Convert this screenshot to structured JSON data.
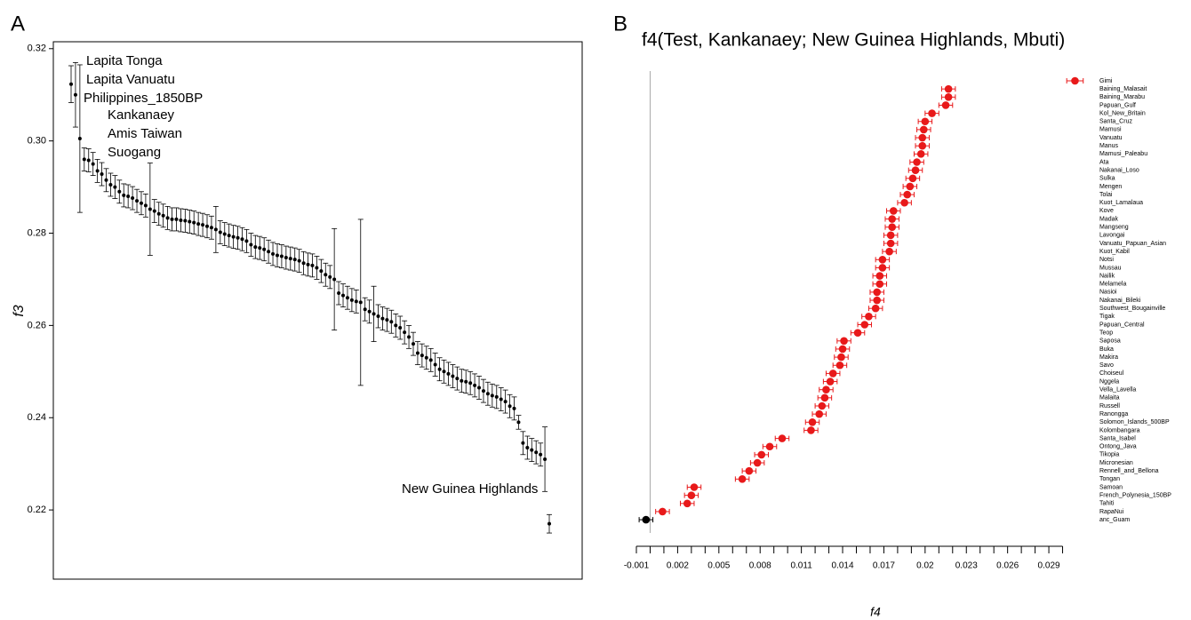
{
  "chart_data": [
    {
      "type": "errorbar",
      "panel": "A",
      "ylabel": "f3",
      "values": [
        0.3123,
        0.31,
        0.3005,
        0.296,
        0.2958,
        0.295,
        0.2935,
        0.2928,
        0.2915,
        0.2905,
        0.29,
        0.289,
        0.2882,
        0.288,
        0.2876,
        0.287,
        0.2865,
        0.286,
        0.2852,
        0.2848,
        0.2842,
        0.2838,
        0.2833,
        0.283,
        0.283,
        0.2828,
        0.2827,
        0.2825,
        0.2823,
        0.282,
        0.2818,
        0.2815,
        0.2812,
        0.2808,
        0.2802,
        0.2798,
        0.2795,
        0.2792,
        0.279,
        0.2787,
        0.2783,
        0.2775,
        0.277,
        0.2768,
        0.2765,
        0.276,
        0.2755,
        0.2752,
        0.275,
        0.2747,
        0.2745,
        0.2743,
        0.274,
        0.2735,
        0.2732,
        0.273,
        0.2725,
        0.2718,
        0.271,
        0.2705,
        0.27,
        0.267,
        0.2665,
        0.266,
        0.2655,
        0.2652,
        0.265,
        0.2635,
        0.263,
        0.2625,
        0.262,
        0.2615,
        0.2612,
        0.2608,
        0.26,
        0.2595,
        0.2585,
        0.2575,
        0.256,
        0.254,
        0.2535,
        0.253,
        0.2525,
        0.2515,
        0.2505,
        0.25,
        0.2495,
        0.249,
        0.2485,
        0.248,
        0.2478,
        0.2475,
        0.247,
        0.2465,
        0.2458,
        0.2452,
        0.2448,
        0.2445,
        0.244,
        0.2435,
        0.2425,
        0.242,
        0.239,
        0.2345,
        0.2335,
        0.233,
        0.2325,
        0.232,
        0.231,
        0.217
      ],
      "errors": [
        0.004,
        0.007,
        0.016,
        0.0025,
        0.0025,
        0.0025,
        0.0025,
        0.0025,
        0.0025,
        0.0025,
        0.0025,
        0.0025,
        0.0025,
        0.0025,
        0.0025,
        0.0025,
        0.0025,
        0.0025,
        0.01,
        0.0025,
        0.0025,
        0.0025,
        0.0025,
        0.0025,
        0.0025,
        0.0025,
        0.0025,
        0.0025,
        0.0025,
        0.0025,
        0.0025,
        0.0025,
        0.0025,
        0.005,
        0.0025,
        0.0025,
        0.0025,
        0.0025,
        0.0025,
        0.0025,
        0.0025,
        0.0025,
        0.0025,
        0.0025,
        0.0025,
        0.0025,
        0.0025,
        0.0025,
        0.0025,
        0.0025,
        0.0025,
        0.0025,
        0.0025,
        0.0025,
        0.0025,
        0.0025,
        0.0025,
        0.0025,
        0.0025,
        0.0025,
        0.011,
        0.0025,
        0.0025,
        0.0025,
        0.0025,
        0.0025,
        0.018,
        0.0025,
        0.0025,
        0.006,
        0.0025,
        0.0025,
        0.0025,
        0.0025,
        0.0025,
        0.0025,
        0.0025,
        0.0025,
        0.0025,
        0.0025,
        0.0025,
        0.0025,
        0.0025,
        0.0025,
        0.0025,
        0.0025,
        0.0025,
        0.0025,
        0.0025,
        0.0025,
        0.0025,
        0.0025,
        0.0025,
        0.0025,
        0.0025,
        0.0025,
        0.0025,
        0.0025,
        0.0025,
        0.0025,
        0.0025,
        0.0025,
        0.0015,
        0.0025,
        0.0025,
        0.0025,
        0.0025,
        0.0025,
        0.007,
        0.002
      ],
      "ylim": [
        0.205,
        0.3215
      ],
      "yticks": [
        0.22,
        0.24,
        0.26,
        0.28,
        {
          "value": 0.3,
          "label": "0.30"
        },
        0.32
      ],
      "annotations": [
        "Lapita Tonga",
        "Lapita Vanuatu",
        "Philippines_1850BP",
        "Kankanaey",
        "Amis Taiwan",
        "Suogang",
        "New Guinea Highlands"
      ],
      "color": "#000000"
    },
    {
      "type": "dotplot",
      "panel": "B",
      "title": "f4(Test, Kankanaey; New Guinea Highlands, Mbuti)",
      "xlabel": "f4",
      "categories": [
        "Gimi",
        "Baining_Malasait",
        "Baining_Marabu",
        "Papuan_Gulf",
        "Kol_New_Britain",
        "Santa_Cruz",
        "Mamusi",
        "Vanuatu",
        "Manus",
        "Mamusi_Paleabu",
        "Ata",
        "Nakanai_Loso",
        "Sulka",
        "Mengen",
        "Tolai",
        "Kuot_Lamalaua",
        "Kove",
        "Madak",
        "Mangseng",
        "Lavongai",
        "Vanuatu_Papuan_Asian",
        "Kuot_Kabil",
        "Notsi",
        "Mussau",
        "Nailik",
        "Melamela",
        "Nasioi",
        "Nakanai_Bileki",
        "Southwest_Bougainville",
        "Tigak",
        "Papuan_Central",
        "Teop",
        "Saposa",
        "Buka",
        "Makira",
        "Savo",
        "Choiseul",
        "Nggela",
        "Vella_Lavella",
        "Malaita",
        "Russell",
        "Ranongga",
        "Solomon_Islands_500BP",
        "Kolombangara",
        "Santa_Isabel",
        "Ontong_Java",
        "Tikopia",
        "Micronesian",
        "Rennell_and_Bellona",
        "Tongan",
        "Samoan",
        "French_Polynesia_150BP",
        "Tahiti",
        "RapaNui",
        "anc_Guam"
      ],
      "values": [
        0.0309,
        0.0217,
        0.0217,
        0.0215,
        0.0205,
        0.02,
        0.0199,
        0.0198,
        0.0198,
        0.0197,
        0.0194,
        0.0193,
        0.0191,
        0.0189,
        0.0187,
        0.0185,
        0.0177,
        0.0176,
        0.0176,
        0.0175,
        0.0175,
        0.0174,
        0.0169,
        0.0169,
        0.0167,
        0.0167,
        0.0165,
        0.0165,
        0.0164,
        0.0159,
        0.0156,
        0.0151,
        0.0141,
        0.014,
        0.0139,
        0.0138,
        0.0133,
        0.0131,
        0.0128,
        0.0127,
        0.0125,
        0.0123,
        0.0118,
        0.0117,
        0.0096,
        0.0087,
        0.0081,
        0.0078,
        0.0072,
        0.0067,
        0.0032,
        0.003,
        0.0027,
        0.0009,
        -0.0003
      ],
      "errors": [
        0.0006,
        0.0005,
        0.0005,
        0.0005,
        0.0005,
        0.0005,
        0.0005,
        0.0005,
        0.0005,
        0.0005,
        0.0005,
        0.0005,
        0.0005,
        0.0005,
        0.0005,
        0.0005,
        0.0005,
        0.0005,
        0.0005,
        0.0005,
        0.0005,
        0.0005,
        0.0005,
        0.0005,
        0.0005,
        0.0005,
        0.0005,
        0.0005,
        0.0005,
        0.0005,
        0.0005,
        0.0005,
        0.0005,
        0.0005,
        0.0005,
        0.0005,
        0.0005,
        0.0005,
        0.0005,
        0.0005,
        0.0005,
        0.0005,
        0.0005,
        0.0005,
        0.0005,
        0.0005,
        0.0005,
        0.0005,
        0.0005,
        0.0005,
        0.0005,
        0.0005,
        0.0005,
        0.0005,
        0.0005
      ],
      "colors": [
        "#e8191a",
        "#e8191a",
        "#e8191a",
        "#e8191a",
        "#e8191a",
        "#e8191a",
        "#e8191a",
        "#e8191a",
        "#e8191a",
        "#e8191a",
        "#e8191a",
        "#e8191a",
        "#e8191a",
        "#e8191a",
        "#e8191a",
        "#e8191a",
        "#e8191a",
        "#e8191a",
        "#e8191a",
        "#e8191a",
        "#e8191a",
        "#e8191a",
        "#e8191a",
        "#e8191a",
        "#e8191a",
        "#e8191a",
        "#e8191a",
        "#e8191a",
        "#e8191a",
        "#e8191a",
        "#e8191a",
        "#e8191a",
        "#e8191a",
        "#e8191a",
        "#e8191a",
        "#e8191a",
        "#e8191a",
        "#e8191a",
        "#e8191a",
        "#e8191a",
        "#e8191a",
        "#e8191a",
        "#e8191a",
        "#e8191a",
        "#e8191a",
        "#e8191a",
        "#e8191a",
        "#e8191a",
        "#e8191a",
        "#e8191a",
        "#e8191a",
        "#e8191a",
        "#e8191a",
        "#e8191a",
        "#000000"
      ],
      "xlim": [
        -0.001,
        0.031
      ],
      "xticks": [
        -0.001,
        0.002,
        0.005,
        0.008,
        0.011,
        0.014,
        0.017,
        0.02,
        0.023,
        0.026,
        0.029
      ],
      "xminor": [
        0,
        0.001,
        0.003,
        0.004,
        0.006,
        0.007,
        0.009,
        0.01,
        0.012,
        0.013,
        0.015,
        0.016,
        0.018,
        0.019,
        0.021,
        0.022,
        0.024,
        0.025,
        0.027,
        0.028,
        0.03
      ],
      "ref_line": 0
    }
  ]
}
